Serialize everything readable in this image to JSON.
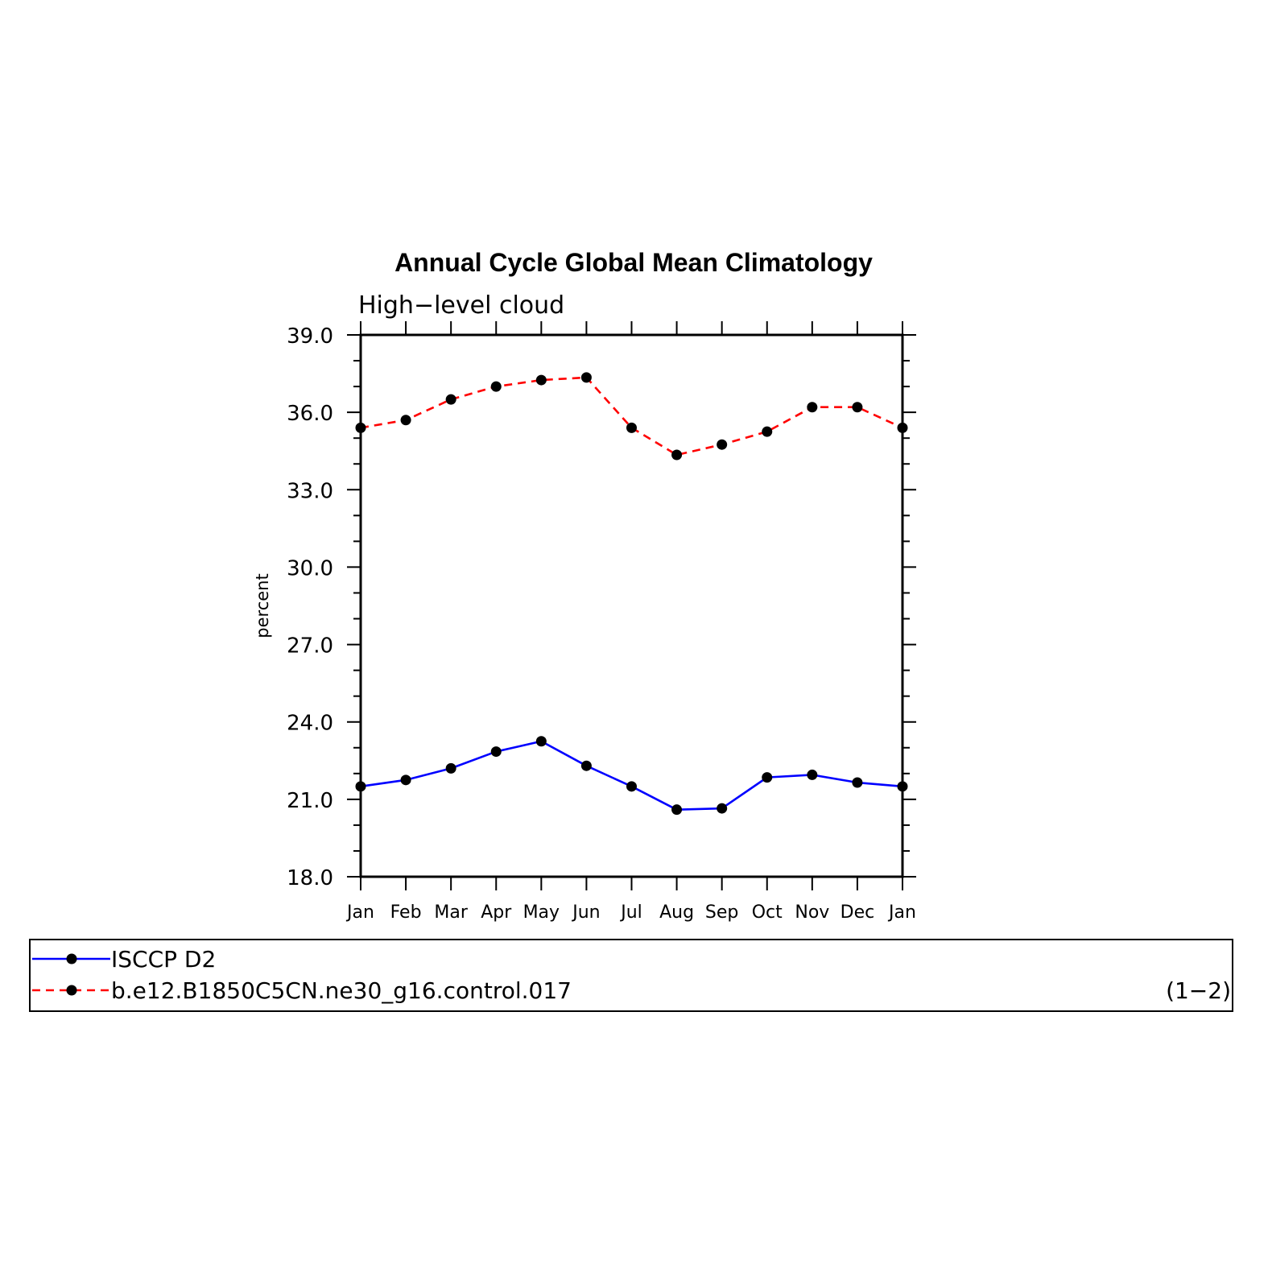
{
  "chart_data": {
    "type": "line",
    "title": "Annual Cycle Global Mean Climatology",
    "subtitle": "High−level cloud",
    "xlabel": "",
    "ylabel": "percent",
    "categories": [
      "Jan",
      "Feb",
      "Mar",
      "Apr",
      "May",
      "Jun",
      "Jul",
      "Aug",
      "Sep",
      "Oct",
      "Nov",
      "Dec",
      "Jan"
    ],
    "ylim": [
      18.0,
      39.0
    ],
    "yticks": [
      "18.0",
      "21.0",
      "24.0",
      "27.0",
      "30.0",
      "33.0",
      "36.0",
      "39.0"
    ],
    "grid": false,
    "legend_position": "bottom",
    "series": [
      {
        "name": "ISCCP D2",
        "color": "#0000ff",
        "style": "solid",
        "marker": "dot",
        "values": [
          21.5,
          21.75,
          22.2,
          22.85,
          23.25,
          22.3,
          21.5,
          20.6,
          20.65,
          21.85,
          21.95,
          21.65,
          21.5
        ]
      },
      {
        "name": "b.e12.B1850C5CN.ne30_g16.control.017",
        "color": "#ff0000",
        "style": "dashed",
        "marker": "dot",
        "values": [
          35.4,
          35.7,
          36.5,
          37.0,
          37.25,
          37.35,
          35.4,
          34.35,
          34.75,
          35.25,
          36.2,
          36.2,
          35.4
        ]
      }
    ],
    "panel_label": "(1−2)"
  }
}
